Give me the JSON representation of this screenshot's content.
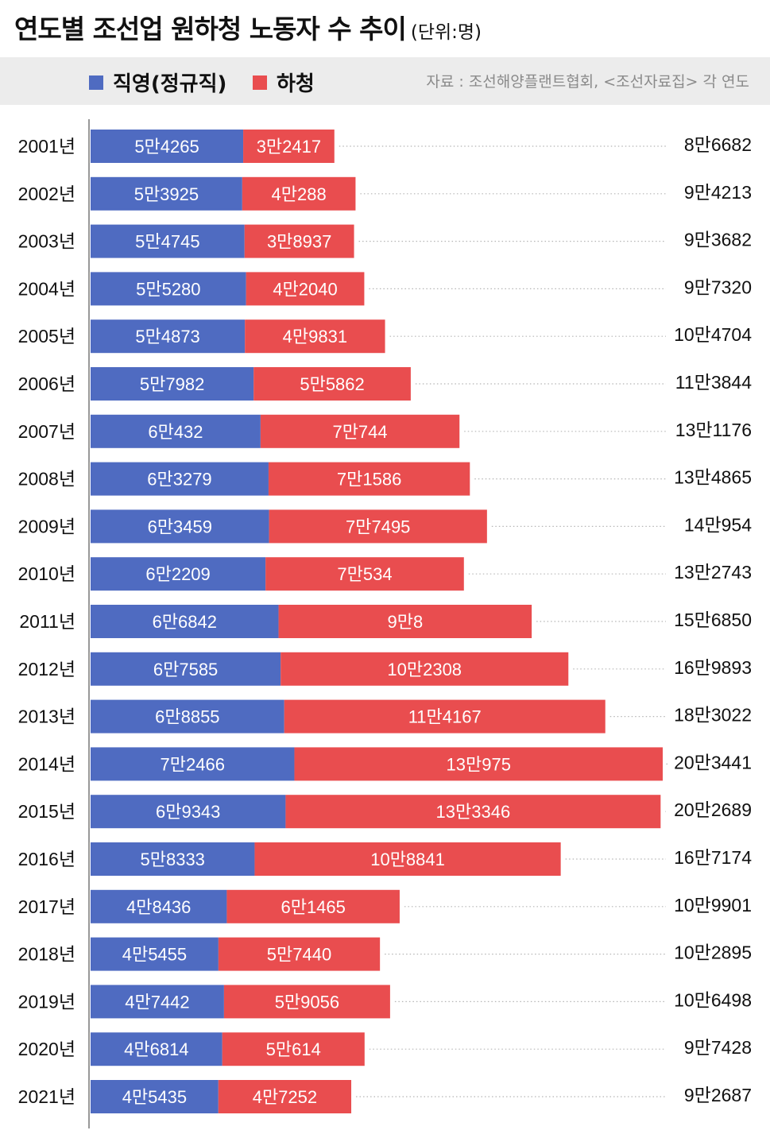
{
  "title": "연도별 조선업 원하청 노동자 수 추이",
  "unit": "(단위:명)",
  "legend": [
    {
      "label": "직영(정규직)",
      "color": "#4f6bc1"
    },
    {
      "label": "하청",
      "color": "#e94d4f"
    }
  ],
  "source": "자료 : 조선해양플랜트협회, <조선자료집> 각 연도",
  "chart_data": {
    "type": "bar",
    "orientation": "horizontal",
    "stacked": true,
    "categories": [
      "2001년",
      "2002년",
      "2003년",
      "2004년",
      "2005년",
      "2006년",
      "2007년",
      "2008년",
      "2009년",
      "2010년",
      "2011년",
      "2012년",
      "2013년",
      "2014년",
      "2015년",
      "2016년",
      "2017년",
      "2018년",
      "2019년",
      "2020년",
      "2021년"
    ],
    "series": [
      {
        "name": "직영(정규직)",
        "color": "#4f6bc1",
        "values": [
          54265,
          53925,
          54745,
          55280,
          54873,
          57982,
          60432,
          63279,
          63459,
          62209,
          66842,
          67585,
          68855,
          72466,
          69343,
          58333,
          48436,
          45455,
          47442,
          46814,
          45435
        ],
        "labels": [
          "5만4265",
          "5만3925",
          "5만4745",
          "5만5280",
          "5만4873",
          "5만7982",
          "6만432",
          "6만3279",
          "6만3459",
          "6만2209",
          "6만6842",
          "6만7585",
          "6만8855",
          "7만2466",
          "6만9343",
          "5만8333",
          "4만8436",
          "4만5455",
          "4만7442",
          "4만6814",
          "4만5435"
        ]
      },
      {
        "name": "하청",
        "color": "#e94d4f",
        "values": [
          32417,
          40288,
          38937,
          42040,
          49831,
          55862,
          70744,
          71586,
          77495,
          70534,
          90008,
          102308,
          114167,
          130975,
          133346,
          108841,
          61465,
          57440,
          59056,
          50614,
          47252
        ],
        "labels": [
          "3만2417",
          "4만288",
          "3만8937",
          "4만2040",
          "4만9831",
          "5만5862",
          "7만744",
          "7만1586",
          "7만7495",
          "7만534",
          "9만8",
          "10만2308",
          "11만4167",
          "13만975",
          "13만3346",
          "10만8841",
          "6만1465",
          "5만7440",
          "5만9056",
          "5만614",
          "4만7252"
        ]
      }
    ],
    "totals": [
      86682,
      94213,
      93682,
      97320,
      104704,
      113844,
      131176,
      134865,
      140954,
      132743,
      156850,
      169893,
      183022,
      203441,
      202689,
      167174,
      109901,
      102895,
      106498,
      97428,
      92687
    ],
    "total_labels": [
      "8만6682",
      "9만4213",
      "9만3682",
      "9만7320",
      "10만4704",
      "11만3844",
      "13만1176",
      "13만4865",
      "14만954",
      "13만2743",
      "15만6850",
      "16만9893",
      "18만3022",
      "20만3441",
      "20만2689",
      "16만7174",
      "10만9901",
      "10만2895",
      "10만6498",
      "9만7428",
      "9만2687"
    ],
    "xlim": [
      0,
      203441
    ]
  }
}
